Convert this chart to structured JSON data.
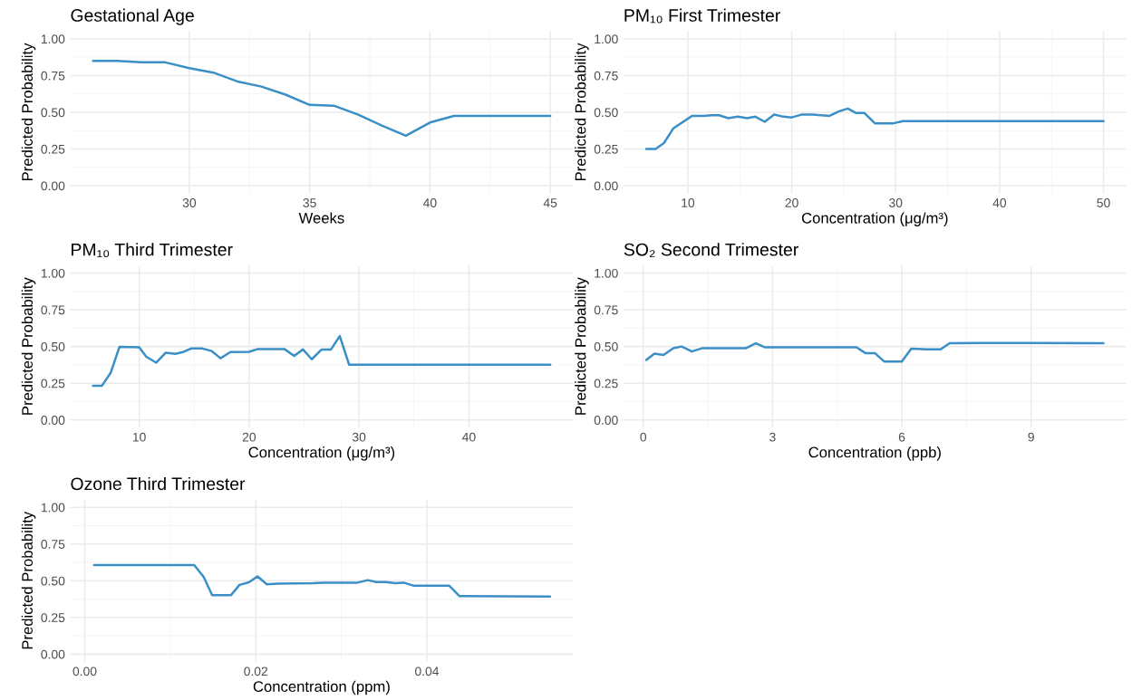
{
  "chart_data": [
    {
      "type": "line",
      "title": "Gestational Age",
      "xlabel": "Weeks",
      "ylabel": "Predicted Probability",
      "grid": true,
      "xlim": [
        25.05,
        45.95
      ],
      "xticks": [
        30,
        35,
        40,
        45
      ],
      "ylim": [
        -0.05,
        1.05
      ],
      "yticks": [
        {
          "value": 0,
          "label": "0.00"
        },
        {
          "value": 0.25,
          "label": "0.25"
        },
        {
          "value": 0.5,
          "label": "0.50"
        },
        {
          "value": 0.75,
          "label": "0.75"
        },
        {
          "value": 1,
          "label": "1.00"
        }
      ],
      "x": [
        26,
        27,
        28,
        29,
        30,
        31,
        32,
        33,
        34,
        35,
        36,
        37,
        38,
        39,
        40,
        41,
        45
      ],
      "series": [
        {
          "color": "#3a8fc6",
          "values": [
            0.85,
            0.85,
            0.84,
            0.84,
            0.8,
            0.77,
            0.71,
            0.675,
            0.62,
            0.55,
            0.545,
            0.485,
            0.41,
            0.34,
            0.43,
            0.475,
            0.475
          ]
        }
      ]
    },
    {
      "type": "line",
      "title": "PM₁₀ First Trimester",
      "xlabel": "Concentration (μg/m³)",
      "ylabel": "Predicted Probability",
      "grid": true,
      "xlim": [
        3.8,
        52.2
      ],
      "xticks": [
        10,
        20,
        30,
        40,
        50
      ],
      "ylim": [
        -0.05,
        1.05
      ],
      "yticks": [
        {
          "value": 0,
          "label": "0.00"
        },
        {
          "value": 0.25,
          "label": "0.25"
        },
        {
          "value": 0.5,
          "label": "0.50"
        },
        {
          "value": 0.75,
          "label": "0.75"
        },
        {
          "value": 1,
          "label": "1.00"
        }
      ],
      "x": [
        6.0,
        6.9,
        7.7,
        8.6,
        10.4,
        11.5,
        12.3,
        13.0,
        13.9,
        14.8,
        15.7,
        16.5,
        17.4,
        18.3,
        19.2,
        20.0,
        21.0,
        22.0,
        23.6,
        24.5,
        25.4,
        26.2,
        27.0,
        28.0,
        29.8,
        30.7,
        50
      ],
      "series": [
        {
          "color": "#3a8fc6",
          "values": [
            0.25,
            0.25,
            0.29,
            0.39,
            0.475,
            0.475,
            0.48,
            0.48,
            0.46,
            0.47,
            0.46,
            0.47,
            0.435,
            0.485,
            0.47,
            0.465,
            0.485,
            0.485,
            0.475,
            0.505,
            0.525,
            0.495,
            0.495,
            0.425,
            0.425,
            0.44,
            0.44
          ]
        }
      ]
    },
    {
      "type": "line",
      "title": "PM₁₀ Third Trimester",
      "xlabel": "Concentration (μg/m³)",
      "ylabel": "Predicted Probability",
      "grid": true,
      "xlim": [
        3.72,
        49.48
      ],
      "xticks": [
        10,
        20,
        30,
        40
      ],
      "ylim": [
        -0.05,
        1.05
      ],
      "yticks": [
        {
          "value": 0,
          "label": "0.00"
        },
        {
          "value": 0.25,
          "label": "0.25"
        },
        {
          "value": 0.5,
          "label": "0.50"
        },
        {
          "value": 0.75,
          "label": "0.75"
        },
        {
          "value": 1,
          "label": "1.00"
        }
      ],
      "x": [
        5.8,
        6.6,
        7.4,
        8.2,
        10.0,
        10.65,
        11.55,
        12.4,
        13.3,
        14.05,
        14.75,
        15.7,
        16.6,
        17.4,
        18.3,
        20.0,
        20.8,
        23.2,
        24.1,
        24.9,
        25.7,
        26.6,
        27.45,
        28.25,
        29.1,
        47.4
      ],
      "series": [
        {
          "color": "#3a8fc6",
          "values": [
            0.232,
            0.232,
            0.32,
            0.497,
            0.495,
            0.43,
            0.39,
            0.457,
            0.45,
            0.464,
            0.487,
            0.487,
            0.469,
            0.42,
            0.462,
            0.464,
            0.483,
            0.483,
            0.436,
            0.48,
            0.413,
            0.48,
            0.48,
            0.571,
            0.376,
            0.376
          ]
        }
      ]
    },
    {
      "type": "line",
      "title": "SO₂ Second Trimester",
      "xlabel": "Concentration (ppb)",
      "ylabel": "Predicted Probability",
      "grid": true,
      "xlim": [
        -0.46,
        11.21
      ],
      "xticks": [
        0,
        3,
        6,
        9
      ],
      "ylim": [
        -0.05,
        1.05
      ],
      "yticks": [
        {
          "value": 0,
          "label": "0.00"
        },
        {
          "value": 0.25,
          "label": "0.25"
        },
        {
          "value": 0.5,
          "label": "0.50"
        },
        {
          "value": 0.75,
          "label": "0.75"
        },
        {
          "value": 1,
          "label": "1.00"
        }
      ],
      "x": [
        0.07,
        0.26,
        0.47,
        0.7,
        0.89,
        1.13,
        1.36,
        2.38,
        2.61,
        2.82,
        4.95,
        5.16,
        5.38,
        5.59,
        6.0,
        6.22,
        6.6,
        6.9,
        7.11,
        7.77,
        9.0,
        10.68
      ],
      "series": [
        {
          "color": "#3a8fc6",
          "values": [
            0.408,
            0.451,
            0.442,
            0.488,
            0.5,
            0.466,
            0.488,
            0.488,
            0.522,
            0.495,
            0.495,
            0.454,
            0.454,
            0.398,
            0.398,
            0.485,
            0.481,
            0.481,
            0.522,
            0.524,
            0.524,
            0.522
          ]
        }
      ]
    },
    {
      "type": "line",
      "title": "Ozone Third Trimester",
      "xlabel": "Concentration (ppm)",
      "ylabel": "Predicted Probability",
      "grid": true,
      "xlim": [
        -0.0017,
        0.0571
      ],
      "xticks": [
        {
          "value": 0,
          "label": "0.00"
        },
        {
          "value": 0.02,
          "label": "0.02"
        },
        {
          "value": 0.04,
          "label": "0.04"
        }
      ],
      "ylim": [
        -0.05,
        1.05
      ],
      "yticks": [
        {
          "value": 0,
          "label": "0.00"
        },
        {
          "value": 0.25,
          "label": "0.25"
        },
        {
          "value": 0.5,
          "label": "0.50"
        },
        {
          "value": 0.75,
          "label": "0.75"
        },
        {
          "value": 1,
          "label": "1.00"
        }
      ],
      "x": [
        0.0011,
        0.0128,
        0.0139,
        0.0149,
        0.0171,
        0.0181,
        0.0192,
        0.0202,
        0.0213,
        0.0225,
        0.0267,
        0.0278,
        0.0319,
        0.0331,
        0.0341,
        0.0352,
        0.0363,
        0.0373,
        0.0384,
        0.0426,
        0.0438,
        0.0544
      ],
      "series": [
        {
          "color": "#3a8fc6",
          "values": [
            0.607,
            0.607,
            0.526,
            0.402,
            0.402,
            0.472,
            0.489,
            0.53,
            0.476,
            0.48,
            0.483,
            0.487,
            0.487,
            0.504,
            0.491,
            0.491,
            0.483,
            0.487,
            0.467,
            0.467,
            0.396,
            0.393
          ]
        }
      ]
    }
  ]
}
